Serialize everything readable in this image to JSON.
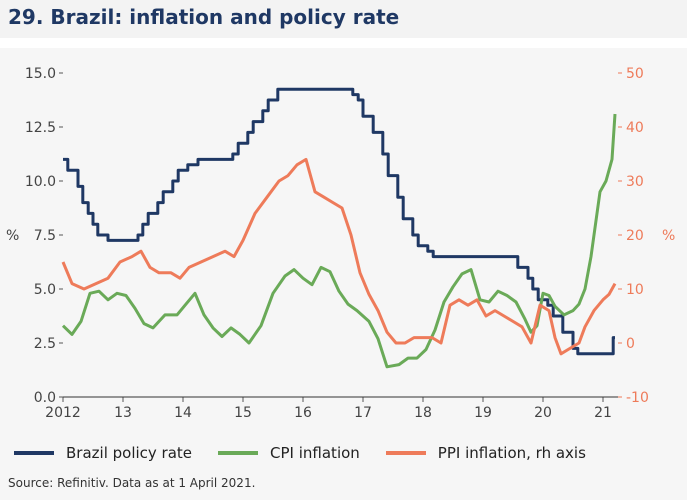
{
  "chart_data": {
    "type": "line",
    "title": "29. Brazil: inflation and policy rate",
    "ylabel_left": "%",
    "ylabel_right": "%",
    "ylim_left": [
      0,
      15
    ],
    "ylim_right": [
      -10,
      50
    ],
    "xlim": [
      2012,
      2021.25
    ],
    "x_ticks": [
      {
        "value": 2012,
        "label": "2012"
      },
      {
        "value": 2013,
        "label": "13"
      },
      {
        "value": 2014,
        "label": "14"
      },
      {
        "value": 2015,
        "label": "15"
      },
      {
        "value": 2016,
        "label": "16"
      },
      {
        "value": 2017,
        "label": "17"
      },
      {
        "value": 2018,
        "label": "18"
      },
      {
        "value": 2019,
        "label": "19"
      },
      {
        "value": 2020,
        "label": "20"
      },
      {
        "value": 2021,
        "label": "21"
      }
    ],
    "y_ticks_left": [
      "0.0",
      "2.5",
      "5.0",
      "7.5",
      "10.0",
      "12.5",
      "15.0"
    ],
    "y_ticks_right": [
      "-10",
      "0",
      "10",
      "20",
      "30",
      "40",
      "50"
    ],
    "series": [
      {
        "name": "Brazil policy rate",
        "axis": "left",
        "color": "#1f3864",
        "step": true,
        "points": [
          [
            2012.0,
            11.0
          ],
          [
            2012.08,
            10.5
          ],
          [
            2012.25,
            9.75
          ],
          [
            2012.33,
            9.0
          ],
          [
            2012.42,
            8.5
          ],
          [
            2012.5,
            8.0
          ],
          [
            2012.58,
            7.5
          ],
          [
            2012.75,
            7.25
          ],
          [
            2013.25,
            7.5
          ],
          [
            2013.33,
            8.0
          ],
          [
            2013.42,
            8.5
          ],
          [
            2013.58,
            9.0
          ],
          [
            2013.67,
            9.5
          ],
          [
            2013.83,
            10.0
          ],
          [
            2013.92,
            10.5
          ],
          [
            2014.08,
            10.75
          ],
          [
            2014.25,
            11.0
          ],
          [
            2014.83,
            11.25
          ],
          [
            2014.92,
            11.75
          ],
          [
            2015.08,
            12.25
          ],
          [
            2015.17,
            12.75
          ],
          [
            2015.33,
            13.25
          ],
          [
            2015.42,
            13.75
          ],
          [
            2015.58,
            14.25
          ],
          [
            2016.83,
            14.0
          ],
          [
            2016.92,
            13.75
          ],
          [
            2017.0,
            13.0
          ],
          [
            2017.17,
            12.25
          ],
          [
            2017.33,
            11.25
          ],
          [
            2017.42,
            10.25
          ],
          [
            2017.58,
            9.25
          ],
          [
            2017.67,
            8.25
          ],
          [
            2017.83,
            7.5
          ],
          [
            2017.92,
            7.0
          ],
          [
            2018.08,
            6.75
          ],
          [
            2018.17,
            6.5
          ],
          [
            2019.58,
            6.0
          ],
          [
            2019.75,
            5.5
          ],
          [
            2019.83,
            5.0
          ],
          [
            2019.92,
            4.5
          ],
          [
            2020.08,
            4.25
          ],
          [
            2020.17,
            3.75
          ],
          [
            2020.33,
            3.0
          ],
          [
            2020.5,
            2.25
          ],
          [
            2020.58,
            2.0
          ],
          [
            2021.17,
            2.75
          ],
          [
            2021.2,
            2.75
          ]
        ]
      },
      {
        "name": "CPI inflation",
        "axis": "left",
        "color": "#6aaa58",
        "step": false,
        "points": [
          [
            2012.0,
            3.3
          ],
          [
            2012.15,
            2.9
          ],
          [
            2012.3,
            3.5
          ],
          [
            2012.45,
            4.8
          ],
          [
            2012.6,
            4.9
          ],
          [
            2012.75,
            4.5
          ],
          [
            2012.9,
            4.8
          ],
          [
            2013.05,
            4.7
          ],
          [
            2013.2,
            4.1
          ],
          [
            2013.35,
            3.4
          ],
          [
            2013.5,
            3.2
          ],
          [
            2013.7,
            3.8
          ],
          [
            2013.9,
            3.8
          ],
          [
            2014.05,
            4.3
          ],
          [
            2014.2,
            4.8
          ],
          [
            2014.35,
            3.8
          ],
          [
            2014.5,
            3.2
          ],
          [
            2014.65,
            2.8
          ],
          [
            2014.8,
            3.2
          ],
          [
            2014.95,
            2.9
          ],
          [
            2015.1,
            2.5
          ],
          [
            2015.3,
            3.3
          ],
          [
            2015.5,
            4.8
          ],
          [
            2015.7,
            5.6
          ],
          [
            2015.85,
            5.9
          ],
          [
            2016.0,
            5.5
          ],
          [
            2016.15,
            5.2
          ],
          [
            2016.3,
            6.0
          ],
          [
            2016.45,
            5.8
          ],
          [
            2016.6,
            4.9
          ],
          [
            2016.75,
            4.3
          ],
          [
            2016.9,
            4.0
          ],
          [
            2017.1,
            3.5
          ],
          [
            2017.25,
            2.7
          ],
          [
            2017.4,
            1.4
          ],
          [
            2017.6,
            1.5
          ],
          [
            2017.75,
            1.8
          ],
          [
            2017.9,
            1.8
          ],
          [
            2018.05,
            2.2
          ],
          [
            2018.2,
            3.1
          ],
          [
            2018.35,
            4.4
          ],
          [
            2018.5,
            5.1
          ],
          [
            2018.65,
            5.7
          ],
          [
            2018.8,
            5.9
          ],
          [
            2018.95,
            4.5
          ],
          [
            2019.1,
            4.4
          ],
          [
            2019.25,
            4.9
          ],
          [
            2019.4,
            4.7
          ],
          [
            2019.55,
            4.4
          ],
          [
            2019.7,
            3.6
          ],
          [
            2019.8,
            3.0
          ],
          [
            2019.9,
            3.3
          ],
          [
            2020.0,
            4.8
          ],
          [
            2020.1,
            4.7
          ],
          [
            2020.2,
            4.2
          ],
          [
            2020.35,
            3.8
          ],
          [
            2020.5,
            4.0
          ],
          [
            2020.6,
            4.3
          ],
          [
            2020.7,
            5.0
          ],
          [
            2020.8,
            6.5
          ],
          [
            2020.95,
            9.5
          ],
          [
            2021.05,
            10.0
          ],
          [
            2021.15,
            11.0
          ],
          [
            2021.2,
            13.1
          ]
        ]
      },
      {
        "name": "PPI inflation, rh axis",
        "axis": "right",
        "color": "#ee7b5a",
        "step": false,
        "points": [
          [
            2012.0,
            15
          ],
          [
            2012.15,
            11
          ],
          [
            2012.35,
            10
          ],
          [
            2012.55,
            11
          ],
          [
            2012.75,
            12
          ],
          [
            2012.95,
            15
          ],
          [
            2013.15,
            16
          ],
          [
            2013.3,
            17
          ],
          [
            2013.45,
            14
          ],
          [
            2013.6,
            13
          ],
          [
            2013.8,
            13
          ],
          [
            2013.95,
            12
          ],
          [
            2014.1,
            14
          ],
          [
            2014.3,
            15
          ],
          [
            2014.5,
            16
          ],
          [
            2014.7,
            17
          ],
          [
            2014.85,
            16
          ],
          [
            2015.0,
            19
          ],
          [
            2015.2,
            24
          ],
          [
            2015.4,
            27
          ],
          [
            2015.6,
            30
          ],
          [
            2015.75,
            31
          ],
          [
            2015.9,
            33
          ],
          [
            2016.05,
            34
          ],
          [
            2016.2,
            28
          ],
          [
            2016.35,
            27
          ],
          [
            2016.5,
            26
          ],
          [
            2016.65,
            25
          ],
          [
            2016.8,
            20
          ],
          [
            2016.95,
            13
          ],
          [
            2017.1,
            9
          ],
          [
            2017.25,
            6
          ],
          [
            2017.4,
            2
          ],
          [
            2017.55,
            0
          ],
          [
            2017.7,
            0
          ],
          [
            2017.85,
            1
          ],
          [
            2018.0,
            1
          ],
          [
            2018.15,
            1
          ],
          [
            2018.3,
            0
          ],
          [
            2018.45,
            7
          ],
          [
            2018.6,
            8
          ],
          [
            2018.75,
            7
          ],
          [
            2018.9,
            8
          ],
          [
            2019.05,
            5
          ],
          [
            2019.2,
            6
          ],
          [
            2019.35,
            5
          ],
          [
            2019.5,
            4
          ],
          [
            2019.65,
            3
          ],
          [
            2019.8,
            0
          ],
          [
            2019.95,
            7
          ],
          [
            2020.1,
            6
          ],
          [
            2020.2,
            1
          ],
          [
            2020.3,
            -2
          ],
          [
            2020.45,
            -1
          ],
          [
            2020.6,
            0
          ],
          [
            2020.7,
            3
          ],
          [
            2020.85,
            6
          ],
          [
            2021.0,
            8
          ],
          [
            2021.1,
            9
          ],
          [
            2021.2,
            11
          ]
        ]
      }
    ],
    "legend": [
      "Brazil policy rate",
      "CPI inflation",
      "PPI inflation, rh axis"
    ]
  },
  "source": "Source: Refinitiv. Data as at 1 April 2021."
}
